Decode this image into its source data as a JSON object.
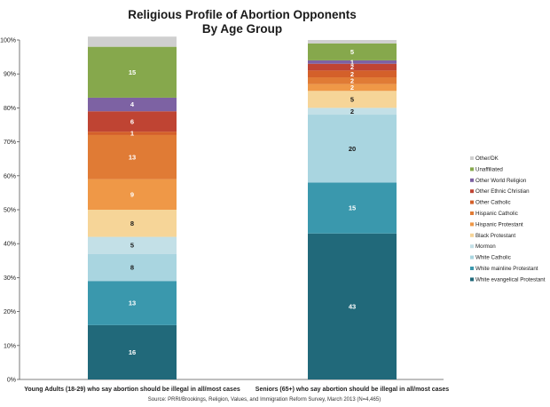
{
  "chart_data": {
    "type": "bar",
    "stacked": true,
    "title": "Religious Profile of Abortion Opponents",
    "subtitle": "By Age Group",
    "source": "Source: PRRI/Brookings, Religion, Values, and Immigration Reform Survey, March 2013 (N=4,465)",
    "categories": [
      "Young Adults (18-29) who say abortion should be illegal in all/most cases",
      "Seniors (65+) who say abortion should be illegal in all/most cases"
    ],
    "ylim": [
      0,
      100
    ],
    "yticks": [
      "0%",
      "10%",
      "20%",
      "30%",
      "40%",
      "50%",
      "60%",
      "70%",
      "80%",
      "90%",
      "100%"
    ],
    "grid": false,
    "legend_position": "right",
    "series": [
      {
        "name": "White evangelical Protestant",
        "color": "#21697a",
        "values": [
          16,
          43
        ],
        "labels": [
          "16",
          "43"
        ]
      },
      {
        "name": "White mainline Protestant",
        "color": "#3a98ad",
        "values": [
          13,
          15
        ],
        "labels": [
          "13",
          "15"
        ]
      },
      {
        "name": "White Catholic",
        "color": "#a9d5e0",
        "values": [
          8,
          20
        ],
        "labels": [
          "8",
          "20"
        ]
      },
      {
        "name": "Mormon",
        "color": "#c3e0e7",
        "values": [
          5,
          2
        ],
        "labels": [
          "5",
          "2"
        ]
      },
      {
        "name": "Black Protestant",
        "color": "#f6d598",
        "values": [
          8,
          5
        ],
        "labels": [
          "8",
          "5"
        ]
      },
      {
        "name": "Hispanic Protestant",
        "color": "#ef9847",
        "values": [
          9,
          2
        ],
        "labels": [
          "9",
          "2"
        ]
      },
      {
        "name": "Hispanic Catholic",
        "color": "#e07b35",
        "values": [
          13,
          2
        ],
        "labels": [
          "13",
          "2"
        ]
      },
      {
        "name": "Other Catholic",
        "color": "#d4602a",
        "values": [
          1,
          2
        ],
        "labels": [
          "1",
          "2"
        ]
      },
      {
        "name": "Other Ethnic Christian",
        "color": "#bf4433",
        "values": [
          6,
          2
        ],
        "labels": [
          "6",
          "2"
        ]
      },
      {
        "name": "Other World Religion",
        "color": "#7d62a3",
        "values": [
          4,
          1
        ],
        "labels": [
          "4",
          "1"
        ]
      },
      {
        "name": "Unaffiliated",
        "color": "#86a84c",
        "values": [
          15,
          5
        ],
        "labels": [
          "15",
          "5"
        ]
      },
      {
        "name": "Other/DK",
        "color": "#cfcfcf",
        "values": [
          3,
          1
        ],
        "labels": [
          "",
          ""
        ]
      }
    ]
  }
}
